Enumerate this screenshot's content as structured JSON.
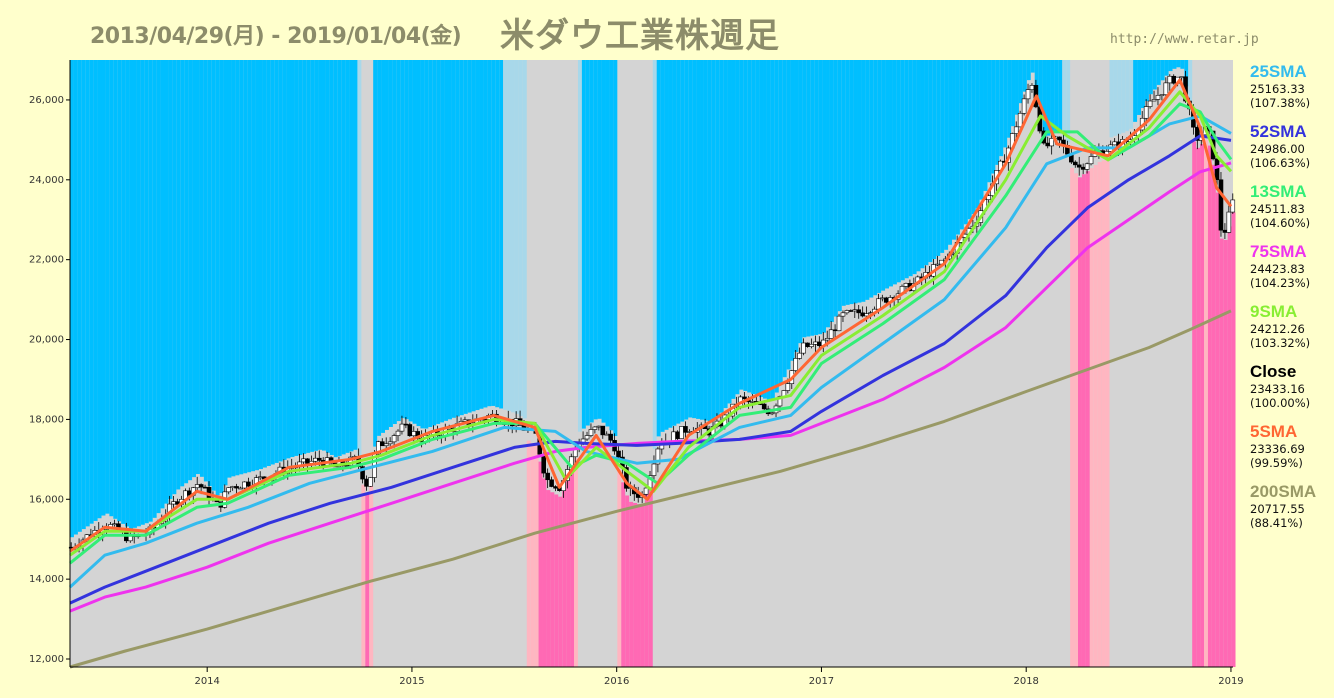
{
  "header": {
    "date_range": "2013/04/29(月) - 2019/01/04(金)",
    "title": "米ダウ工業株週足",
    "url": "http://www.retar.jp"
  },
  "colors": {
    "background": "#ffffcc",
    "plot_bg": "#d4d4d4",
    "uptrend_band": "#00bfff",
    "light_up_band": "#a8d8ea",
    "downtrend_band": "#ff69b4",
    "light_down_band": "#ffb6c1"
  },
  "legend": [
    {
      "name": "25SMA",
      "value": "25163.33",
      "pct": "(107.38%)",
      "color": "#33bbee"
    },
    {
      "name": "52SMA",
      "value": "24986.00",
      "pct": "(106.63%)",
      "color": "#3333dd"
    },
    {
      "name": "13SMA",
      "value": "24511.83",
      "pct": "(104.60%)",
      "color": "#33ee77"
    },
    {
      "name": "75SMA",
      "value": "24423.83",
      "pct": "(104.23%)",
      "color": "#ee33ee"
    },
    {
      "name": "9SMA",
      "value": "24212.26",
      "pct": "(103.32%)",
      "color": "#88ee33"
    },
    {
      "name": "Close",
      "value": "23433.16",
      "pct": "(100.00%)",
      "color": "#000000"
    },
    {
      "name": "5SMA",
      "value": "23336.69",
      "pct": "(99.59%)",
      "color": "#ff6633"
    },
    {
      "name": "200SMA",
      "value": "20717.55",
      "pct": "(88.41%)",
      "color": "#999966"
    }
  ],
  "chart_data": {
    "type": "line",
    "title": "米ダウ工業株週足",
    "x_range": [
      "2013-04-29",
      "2019-01-04"
    ],
    "ylim": [
      11800,
      27000
    ],
    "y_ticks": [
      "12,000",
      "14,000",
      "16,000",
      "18,000",
      "20,000",
      "22,000",
      "24,000",
      "26,000"
    ],
    "y_tick_values": [
      12000,
      14000,
      16000,
      18000,
      20000,
      22000,
      24000,
      26000
    ],
    "x_ticks": [
      "2014",
      "2015",
      "2016",
      "2017",
      "2018",
      "2019"
    ],
    "x_tick_values": [
      2014.0,
      2015.0,
      2016.0,
      2017.0,
      2018.0,
      2019.0
    ],
    "grid": false,
    "legend_position": "right",
    "series": [
      {
        "name": "Close",
        "color": "#000000",
        "x": [
          2013.33,
          2013.5,
          2013.62,
          2013.72,
          2013.85,
          2013.95,
          2014.05,
          2014.1,
          2014.25,
          2014.4,
          2014.55,
          2014.62,
          2014.72,
          2014.78,
          2014.82,
          2014.95,
          2015.05,
          2015.2,
          2015.38,
          2015.5,
          2015.6,
          2015.65,
          2015.72,
          2015.8,
          2015.9,
          2015.98,
          2016.05,
          2016.12,
          2016.2,
          2016.35,
          2016.45,
          2016.5,
          2016.6,
          2016.75,
          2016.83,
          2016.9,
          2017.0,
          2017.1,
          2017.2,
          2017.3,
          2017.45,
          2017.6,
          2017.75,
          2017.9,
          2018.02,
          2018.08,
          2018.15,
          2018.25,
          2018.35,
          2018.5,
          2018.6,
          2018.7,
          2018.75,
          2018.82,
          2018.88,
          2018.92,
          2018.95,
          2018.98,
          2019.0
        ],
        "y": [
          14800,
          15400,
          15000,
          15200,
          16000,
          16400,
          15800,
          16300,
          16500,
          16800,
          17000,
          16800,
          17000,
          16300,
          17300,
          17800,
          17500,
          17800,
          18100,
          17900,
          17600,
          16500,
          16300,
          17400,
          17800,
          17400,
          16200,
          16100,
          17400,
          17800,
          17700,
          17900,
          18500,
          18200,
          19000,
          19800,
          19900,
          20600,
          20700,
          21000,
          21400,
          22000,
          23000,
          24700,
          26500,
          24800,
          25000,
          24300,
          24700,
          25000,
          25900,
          26500,
          26600,
          25000,
          25300,
          24300,
          22500,
          23000,
          23433
        ]
      },
      {
        "name": "5SMA",
        "color": "#ff6633",
        "x": [
          2013.33,
          2013.5,
          2013.7,
          2013.95,
          2014.1,
          2014.4,
          2014.7,
          2014.85,
          2015.1,
          2015.4,
          2015.6,
          2015.72,
          2015.9,
          2016.05,
          2016.15,
          2016.35,
          2016.6,
          2016.85,
          2017.0,
          2017.3,
          2017.6,
          2017.9,
          2018.05,
          2018.15,
          2018.4,
          2018.6,
          2018.75,
          2018.85,
          2018.93,
          2019.0
        ],
        "y": [
          14700,
          15300,
          15200,
          16200,
          16000,
          16800,
          17000,
          17200,
          17700,
          18100,
          17800,
          16300,
          17600,
          16400,
          16000,
          17600,
          18400,
          19000,
          19800,
          20800,
          21900,
          24400,
          26100,
          24900,
          24600,
          25500,
          26500,
          25300,
          23800,
          23336
        ]
      },
      {
        "name": "9SMA",
        "color": "#88ee33",
        "x": [
          2013.33,
          2013.5,
          2013.7,
          2013.95,
          2014.1,
          2014.4,
          2014.7,
          2014.85,
          2015.1,
          2015.4,
          2015.6,
          2015.75,
          2015.9,
          2016.05,
          2016.18,
          2016.35,
          2016.6,
          2016.85,
          2017.0,
          2017.3,
          2017.6,
          2017.9,
          2018.07,
          2018.2,
          2018.4,
          2018.6,
          2018.75,
          2018.85,
          2018.93,
          2019.0
        ],
        "y": [
          14600,
          15200,
          15200,
          16000,
          16000,
          16700,
          16900,
          17100,
          17600,
          18000,
          17900,
          16500,
          17300,
          16700,
          16200,
          17300,
          18300,
          18600,
          19600,
          20600,
          21700,
          24000,
          25600,
          25100,
          24500,
          25300,
          26200,
          25600,
          24600,
          24212
        ]
      },
      {
        "name": "13SMA",
        "color": "#33ee77",
        "x": [
          2013.33,
          2013.5,
          2013.7,
          2013.95,
          2014.1,
          2014.4,
          2014.7,
          2014.85,
          2015.1,
          2015.4,
          2015.6,
          2015.78,
          2015.9,
          2016.05,
          2016.2,
          2016.35,
          2016.6,
          2016.85,
          2017.0,
          2017.3,
          2017.6,
          2017.9,
          2018.1,
          2018.25,
          2018.4,
          2018.6,
          2018.75,
          2018.85,
          2018.93,
          2019.0
        ],
        "y": [
          14400,
          15100,
          15100,
          15800,
          15900,
          16600,
          16800,
          17000,
          17500,
          17900,
          17900,
          16800,
          17100,
          16900,
          16400,
          17100,
          18100,
          18300,
          19400,
          20400,
          21500,
          23600,
          25200,
          25200,
          24500,
          25100,
          25900,
          25700,
          25000,
          24511
        ]
      },
      {
        "name": "25SMA",
        "color": "#33bbee",
        "x": [
          2013.33,
          2013.5,
          2013.7,
          2013.95,
          2014.2,
          2014.5,
          2014.8,
          2015.1,
          2015.45,
          2015.7,
          2015.85,
          2016.1,
          2016.3,
          2016.6,
          2016.85,
          2017.0,
          2017.3,
          2017.6,
          2017.9,
          2018.1,
          2018.3,
          2018.5,
          2018.7,
          2018.85,
          2019.0
        ],
        "y": [
          13800,
          14600,
          14900,
          15400,
          15800,
          16400,
          16800,
          17200,
          17800,
          17700,
          17200,
          16900,
          17000,
          17800,
          18100,
          18800,
          19900,
          21000,
          22800,
          24400,
          24800,
          24800,
          25400,
          25600,
          25163
        ]
      },
      {
        "name": "52SMA",
        "color": "#3333dd",
        "x": [
          2013.33,
          2013.5,
          2013.7,
          2014.0,
          2014.3,
          2014.6,
          2014.9,
          2015.2,
          2015.5,
          2015.7,
          2015.85,
          2016.1,
          2016.3,
          2016.6,
          2016.85,
          2017.0,
          2017.3,
          2017.6,
          2017.9,
          2018.1,
          2018.3,
          2018.5,
          2018.7,
          2018.85,
          2019.0
        ],
        "y": [
          13400,
          13800,
          14200,
          14800,
          15400,
          15900,
          16300,
          16800,
          17300,
          17450,
          17400,
          17350,
          17400,
          17500,
          17700,
          18200,
          19100,
          19900,
          21100,
          22300,
          23300,
          24000,
          24600,
          25100,
          24986
        ]
      },
      {
        "name": "75SMA",
        "color": "#ee33ee",
        "x": [
          2013.33,
          2013.5,
          2013.7,
          2014.0,
          2014.3,
          2014.6,
          2014.9,
          2015.2,
          2015.5,
          2015.7,
          2015.85,
          2016.1,
          2016.3,
          2016.6,
          2016.85,
          2017.0,
          2017.3,
          2017.6,
          2017.9,
          2018.1,
          2018.3,
          2018.5,
          2018.7,
          2018.85,
          2019.0
        ],
        "y": [
          13200,
          13550,
          13800,
          14300,
          14900,
          15400,
          15900,
          16400,
          16900,
          17200,
          17300,
          17400,
          17450,
          17500,
          17600,
          17900,
          18500,
          19300,
          20300,
          21300,
          22300,
          23000,
          23700,
          24200,
          24423
        ]
      },
      {
        "name": "200SMA",
        "color": "#999966",
        "x": [
          2013.33,
          2013.6,
          2014.0,
          2014.4,
          2014.8,
          2015.2,
          2015.6,
          2016.0,
          2016.4,
          2016.8,
          2017.2,
          2017.6,
          2018.0,
          2018.3,
          2018.6,
          2018.8,
          2019.0
        ],
        "y": [
          11800,
          12200,
          12750,
          13350,
          13950,
          14500,
          15150,
          15700,
          16200,
          16700,
          17300,
          17950,
          18700,
          19250,
          19800,
          20250,
          20717
        ]
      }
    ]
  }
}
